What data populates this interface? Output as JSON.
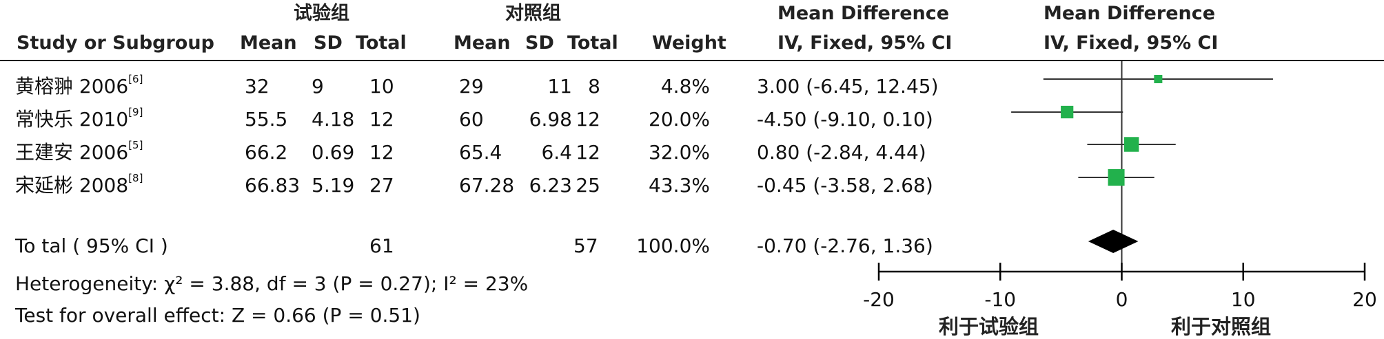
{
  "header": {
    "experimental_group": "试验组",
    "control_group": "对照组",
    "mean_difference": "Mean Difference",
    "method_ci": "IV, Fixed, 95% CI",
    "study_col": "Study or Subgroup",
    "mean": "Mean",
    "sd": "SD",
    "total": "Total",
    "weight": "Weight"
  },
  "studies": [
    {
      "name": "黄榕翀 2006",
      "ref": "[6]",
      "exp_mean": "32",
      "exp_sd": "9",
      "exp_total": "10",
      "ctl_mean": "29",
      "ctl_sd": "11",
      "ctl_total": "8",
      "weight": "4.8%",
      "ci_text": "3.00 (-6.45, 12.45)"
    },
    {
      "name": "常快乐 2010",
      "ref": "[9]",
      "exp_mean": "55.5",
      "exp_sd": "4.18",
      "exp_total": "12",
      "ctl_mean": "60",
      "ctl_sd": "6.98",
      "ctl_total": "12",
      "weight": "20.0%",
      "ci_text": "-4.50 (-9.10, 0.10)"
    },
    {
      "name": "王建安 2006",
      "ref": "[5]",
      "exp_mean": "66.2",
      "exp_sd": "0.69",
      "exp_total": "12",
      "ctl_mean": "65.4",
      "ctl_sd": "6.4",
      "ctl_total": "12",
      "weight": "32.0%",
      "ci_text": "0.80 (-2.84, 4.44)"
    },
    {
      "name": "宋延彬 2008",
      "ref": "[8]",
      "exp_mean": "66.83",
      "exp_sd": "5.19",
      "exp_total": "27",
      "ctl_mean": "67.28",
      "ctl_sd": "6.23",
      "ctl_total": "25",
      "weight": "43.3%",
      "ci_text": "-0.45 (-3.58, 2.68)"
    }
  ],
  "total": {
    "label": "To tal ( 95% CI )",
    "exp_total": "61",
    "ctl_total": "57",
    "weight": "100.0%",
    "ci_text": "-0.70 (-2.76, 1.36)"
  },
  "footer": {
    "heterogeneity": "Heterogeneity:  χ² = 3.88, df = 3 (P = 0.27); I² = 23%",
    "overall_effect": "Test for overall effect: Z = 0.66 (P = 0.51)"
  },
  "axis": {
    "favours_experimental": "利于试验组",
    "favours_control": "利于对照组"
  },
  "chart_data": {
    "type": "forest",
    "xlim": [
      -20,
      20
    ],
    "ticks": [
      -20,
      -10,
      0,
      10,
      20
    ],
    "tick_labels": [
      "-20",
      "-10",
      "0",
      "10",
      "20"
    ],
    "null_line": 0,
    "marker_color": "#22b14c",
    "studies": [
      {
        "est": 3.0,
        "lo": -6.45,
        "hi": 12.45,
        "weight": 4.8
      },
      {
        "est": -4.5,
        "lo": -9.1,
        "hi": 0.1,
        "weight": 20.0
      },
      {
        "est": 0.8,
        "lo": -2.84,
        "hi": 4.44,
        "weight": 32.0
      },
      {
        "est": -0.45,
        "lo": -3.58,
        "hi": 2.68,
        "weight": 43.3
      }
    ],
    "pooled": {
      "est": -0.7,
      "lo": -2.76,
      "hi": 1.36
    }
  }
}
